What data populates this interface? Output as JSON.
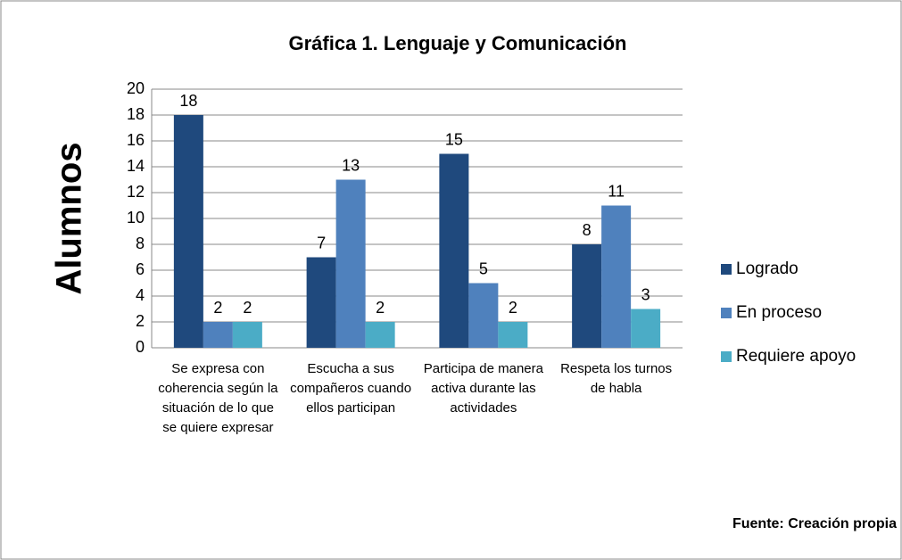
{
  "chart_data": {
    "type": "bar",
    "title": "Gráfica 1. Lenguaje y Comunicación",
    "y_label": "Alumnos",
    "source": "Fuente: Creación propia",
    "categories": [
      "Se expresa con coherencia según la situación de lo que se quiere expresar",
      "Escucha a sus compañeros cuando ellos participan",
      "Participa de manera activa durante las actividades",
      "Respeta los turnos de habla"
    ],
    "series": [
      {
        "name": "Logrado",
        "color": "#1f497d",
        "values": [
          18,
          7,
          15,
          8
        ]
      },
      {
        "name": "En proceso",
        "color": "#4f81bd",
        "values": [
          2,
          13,
          5,
          11
        ]
      },
      {
        "name": "Requiere apoyo",
        "color": "#4bacc6",
        "values": [
          2,
          2,
          2,
          3
        ]
      }
    ],
    "ylim": [
      0,
      20
    ],
    "yticks": [
      0,
      2,
      4,
      6,
      8,
      10,
      12,
      14,
      16,
      18,
      20
    ],
    "grid": true,
    "legend": "right"
  }
}
